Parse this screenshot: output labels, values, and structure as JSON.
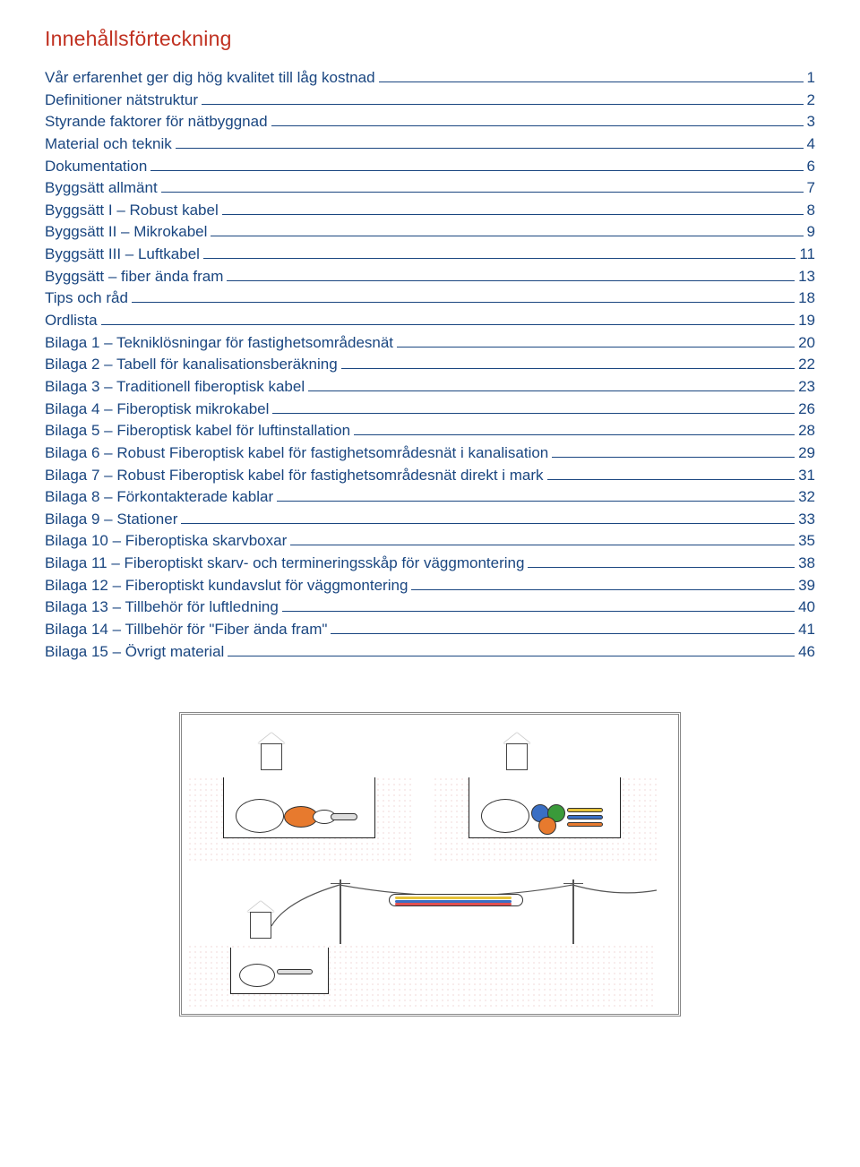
{
  "heading": "Innehållsförteckning",
  "colors": {
    "heading": "#c03020",
    "link": "#1a4680",
    "page_bg": "#ffffff",
    "duct_orange": "#e77a2e",
    "duct_blue": "#3a6fc4",
    "duct_green": "#3a9a3a",
    "duct_yellow": "#e6c23a",
    "cable_red": "#e05050",
    "cable_blue": "#3a6fc4",
    "sheath": "#ffffff",
    "grass": "#3a9a3a",
    "soil_dot": "#c77"
  },
  "toc": [
    {
      "label": "Vår erfarenhet ger dig hög kvalitet till låg kostnad",
      "page": "1"
    },
    {
      "label": "Definitioner nätstruktur",
      "page": "2"
    },
    {
      "label": "Styrande faktorer för nätbyggnad",
      "page": "3"
    },
    {
      "label": "Material och teknik",
      "page": "4"
    },
    {
      "label": "Dokumentation",
      "page": "6"
    },
    {
      "label": "Byggsätt allmänt",
      "page": "7"
    },
    {
      "label": "Byggsätt I – Robust kabel",
      "page": "8"
    },
    {
      "label": "Byggsätt II – Mikrokabel",
      "page": "9"
    },
    {
      "label": "Byggsätt III – Luftkabel",
      "page": "11"
    },
    {
      "label": "Byggsätt – fiber ända fram",
      "page": "13"
    },
    {
      "label": "Tips och råd",
      "page": "18"
    },
    {
      "label": "Ordlista",
      "page": "19"
    },
    {
      "label": "Bilaga 1 – Tekniklösningar för fastighetsområdesnät",
      "page": "20"
    },
    {
      "label": "Bilaga 2 – Tabell för kanalisationsberäkning",
      "page": "22"
    },
    {
      "label": "Bilaga 3 – Traditionell fiberoptisk kabel",
      "page": "23"
    },
    {
      "label": "Bilaga 4 – Fiberoptisk mikrokabel",
      "page": "26"
    },
    {
      "label": "Bilaga 5 – Fiberoptisk kabel för luftinstallation",
      "page": "28"
    },
    {
      "label": "Bilaga 6 – Robust Fiberoptisk kabel för fastighetsområdesnät i kanalisation",
      "page": "29"
    },
    {
      "label": "Bilaga 7 – Robust Fiberoptisk kabel för fastighetsområdesnät direkt i mark",
      "page": "31"
    },
    {
      "label": "Bilaga 8 – Förkontakterade kablar",
      "page": "32"
    },
    {
      "label": "Bilaga 9 – Stationer",
      "page": "33"
    },
    {
      "label": "Bilaga 10 – Fiberoptiska skarvboxar",
      "page": "35"
    },
    {
      "label": "Bilaga 11 – Fiberoptiskt skarv- och termineringsskåp för väggmontering",
      "page": "38"
    },
    {
      "label": "Bilaga 12 – Fiberoptiskt kundavslut för väggmontering",
      "page": "39"
    },
    {
      "label": "Bilaga 13 – Tillbehör för luftledning",
      "page": "40"
    },
    {
      "label": "Bilaga 14 – Tillbehör för \"Fiber ända fram\"",
      "page": "41"
    },
    {
      "label": "Bilaga 15 – Övrigt material",
      "page": "46"
    }
  ],
  "diagram": {
    "scenes": [
      "direct-burial-robust-cable",
      "multi-duct-microcable",
      "aerial-overhead-cable"
    ]
  }
}
